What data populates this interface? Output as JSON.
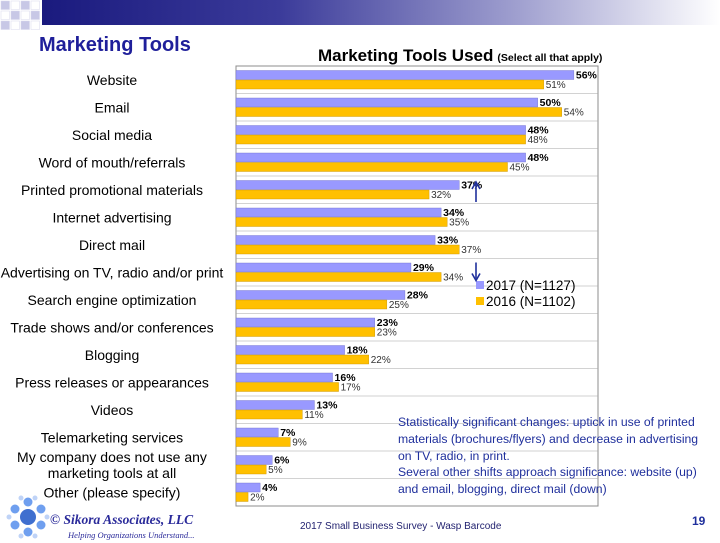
{
  "slide": {
    "title": "Marketing Tools",
    "copyright": "© Sikora Associates, LLC",
    "tagline": "Helping Organizations Understand...",
    "footer": "2017 Small Business Survey - Wasp Barcode",
    "page_number": "19"
  },
  "note": {
    "label": "Statistically significant changes:",
    "text1": " uptick in use of printed materials (brochures/flyers) and decrease in advertising on TV, radio, in print.",
    "text2": "Several other shifts approach significance: website (up) and email, blogging, direct mail (down)"
  },
  "colors": {
    "series_2017": "#9999ff",
    "series_2016": "#ffc000",
    "arrow": "#1f2f9c",
    "accent": "#1f1f9a"
  },
  "chart_data": {
    "type": "bar",
    "orientation": "horizontal",
    "title": "Marketing Tools Used",
    "subtitle": "(Select all that apply)",
    "xlim": [
      0,
      60
    ],
    "grid": true,
    "legend_position": "right",
    "categories": [
      "Website",
      "Email",
      "Social media",
      "Word of mouth/referrals",
      "Printed promotional materials",
      "Internet advertising",
      "Direct mail",
      "Advertising on TV, radio and/or print",
      "Search engine optimization",
      "Trade shows and/or conferences",
      "Blogging",
      "Press releases or appearances",
      "Videos",
      "Telemarketing services",
      "My company does not use any marketing tools at all",
      "Other (please specify)"
    ],
    "series": [
      {
        "name": "2017 (N=1127)",
        "values": [
          56,
          50,
          48,
          48,
          37,
          34,
          33,
          29,
          28,
          23,
          18,
          16,
          13,
          7,
          6,
          4
        ]
      },
      {
        "name": "2016 (N=1102)",
        "values": [
          51,
          54,
          48,
          45,
          32,
          35,
          37,
          34,
          25,
          23,
          22,
          17,
          11,
          9,
          5,
          2
        ]
      }
    ],
    "annotations": [
      {
        "category": "Printed promotional materials",
        "direction": "up"
      },
      {
        "category": "Advertising on TV, radio and/or print",
        "direction": "down"
      }
    ]
  }
}
